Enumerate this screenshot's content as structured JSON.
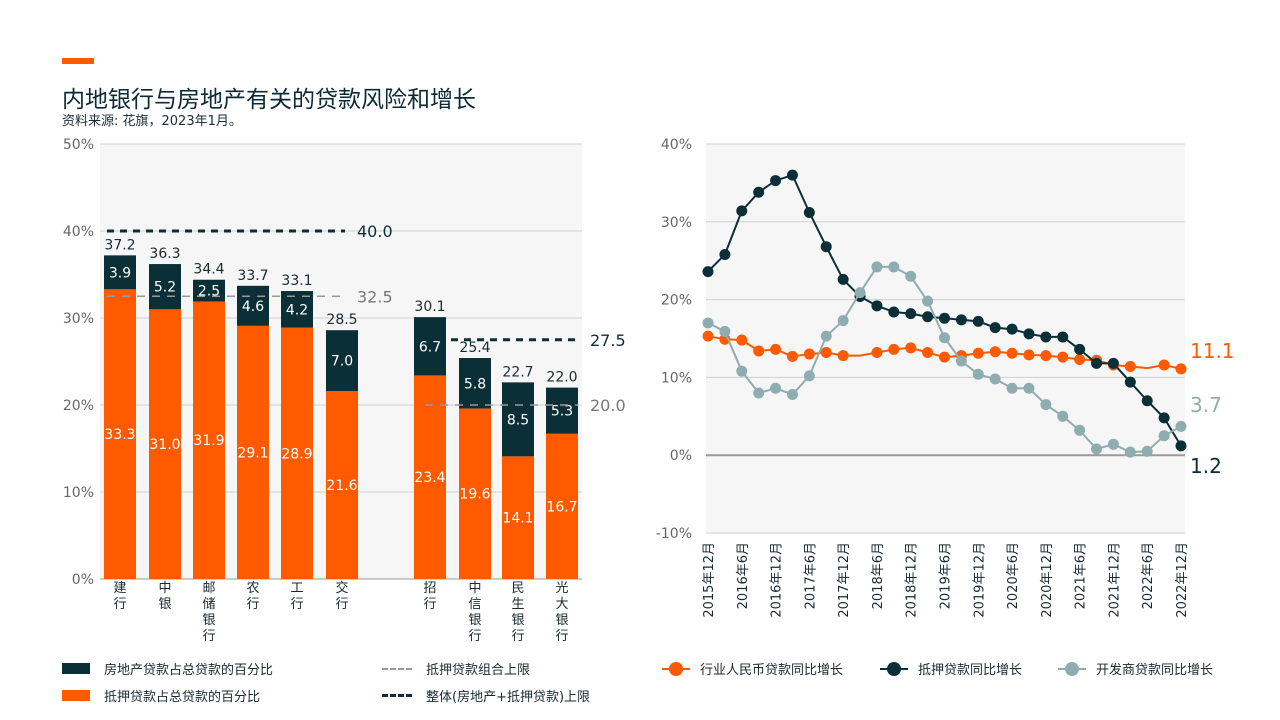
{
  "header": {
    "title": "内地银行与房地产有关的贷款风险和增长",
    "subtitle": "资料来源: 花旗，2023年1月。"
  },
  "colors": {
    "accent": "#ff5a00",
    "dark": "#0b2f36",
    "teal": "#8fadb0",
    "grid": "#d0d0d0",
    "bg": "#f6f6f6"
  },
  "legend": {
    "property_share": "房地产贷款占总贷款的百分比",
    "mortgage_share": "抵押贷款占总贷款的百分比",
    "mortgage_cap": "抵押贷款组合上限",
    "overall_cap": "整体(房地产+抵押贷款)上限",
    "industry_rmb_growth": "行业人民币贷款同比增长",
    "mortgage_growth": "抵押贷款同比增长",
    "developer_growth": "开发商贷款同比增长"
  },
  "chart_data": [
    {
      "type": "bar",
      "stacked": true,
      "categories": [
        "建行",
        "中银",
        "邮储银行",
        "农行",
        "工行",
        "交行",
        "招行",
        "中信银行",
        "民生银行",
        "光大银行"
      ],
      "series": [
        {
          "name": "抵押贷款占总贷款的百分比",
          "color": "#ff5a00",
          "values": [
            33.3,
            31.0,
            31.9,
            29.1,
            28.9,
            21.6,
            23.4,
            19.6,
            14.1,
            16.7
          ],
          "labels": [
            "33.3",
            "31.0",
            "31.9",
            "29.1",
            "28.9",
            "21.6",
            "23.4",
            "19.6",
            "14.1",
            "16.7"
          ]
        },
        {
          "name": "房地产贷款占总贷款的百分比",
          "color": "#0b2f36",
          "values": [
            3.9,
            5.2,
            2.5,
            4.6,
            4.2,
            7.0,
            6.7,
            5.8,
            8.5,
            5.3
          ],
          "labels": [
            "3.9",
            "5.2",
            "2.5",
            "4.6",
            "4.2",
            "7.0",
            "6.7",
            "5.8",
            "8.5",
            "5.3"
          ]
        }
      ],
      "totals": [
        "37.2",
        "36.3",
        "34.4",
        "33.7",
        "33.1",
        "28.5",
        "30.1",
        "25.4",
        "22.7",
        "22.0"
      ],
      "reference_lines": [
        {
          "name": "整体(房地产+抵押贷款)上限",
          "group": 1,
          "value": 40.0,
          "label": "40.0"
        },
        {
          "name": "抵押贷款组合上限",
          "group": 1,
          "value": 32.5,
          "label": "32.5"
        },
        {
          "name": "整体(房地产+抵押贷款)上限",
          "group": 2,
          "value": 27.5,
          "label": "27.5"
        },
        {
          "name": "抵押贷款组合上限",
          "group": 2,
          "value": 20.0,
          "label": "20.0"
        }
      ],
      "yticks": [
        "0%",
        "10%",
        "20%",
        "30%",
        "40%",
        "50%"
      ],
      "ylim": [
        0,
        50
      ],
      "grid": true
    },
    {
      "type": "line",
      "x": [
        "2015年12月",
        "2016年3月",
        "2016年6月",
        "2016年9月",
        "2016年12月",
        "2017年3月",
        "2017年6月",
        "2017年9月",
        "2017年12月",
        "2018年3月",
        "2018年6月",
        "2018年9月",
        "2018年12月",
        "2019年3月",
        "2019年6月",
        "2019年9月",
        "2019年12月",
        "2020年3月",
        "2020年6月",
        "2020年9月",
        "2020年12月",
        "2021年3月",
        "2021年6月",
        "2021年9月",
        "2021年12月",
        "2022年3月",
        "2022年6月",
        "2022年9月",
        "2022年12月"
      ],
      "xticks": [
        "2015年12月",
        "2016年6月",
        "2016年12月",
        "2017年6月",
        "2017年12月",
        "2018年6月",
        "2018年12月",
        "2019年6月",
        "2019年12月",
        "2020年6月",
        "2020年12月",
        "2021年6月",
        "2021年12月",
        "2022年6月",
        "2022年12月"
      ],
      "series": [
        {
          "name": "行业人民币贷款同比增长",
          "color": "#ff5a00",
          "values": [
            15.3,
            14.9,
            14.8,
            13.4,
            13.6,
            12.7,
            13.0,
            13.2,
            12.8,
            12.8,
            13.2,
            13.6,
            13.8,
            13.2,
            12.6,
            12.8,
            13.1,
            13.3,
            13.1,
            12.9,
            12.8,
            12.6,
            12.3,
            12.2,
            11.6,
            11.4,
            11.2,
            11.6,
            11.1
          ],
          "markers": [
            true,
            true,
            true,
            true,
            true,
            true,
            true,
            true,
            true,
            false,
            true,
            true,
            true,
            true,
            true,
            true,
            true,
            true,
            true,
            true,
            true,
            true,
            true,
            true,
            true,
            true,
            false,
            true,
            true
          ],
          "end_label": "11.1"
        },
        {
          "name": "抵押贷款同比增长",
          "color": "#0b2f36",
          "values": [
            23.6,
            25.8,
            31.4,
            33.8,
            35.3,
            36.0,
            31.2,
            26.8,
            22.6,
            20.4,
            19.2,
            18.4,
            18.2,
            17.8,
            17.6,
            17.4,
            17.2,
            16.4,
            16.2,
            15.6,
            15.2,
            15.2,
            13.6,
            11.8,
            11.8,
            9.4,
            7.0,
            4.8,
            1.2
          ],
          "markers": [
            true,
            true,
            true,
            true,
            true,
            true,
            true,
            true,
            true,
            true,
            true,
            true,
            true,
            true,
            true,
            true,
            true,
            true,
            true,
            true,
            true,
            true,
            true,
            true,
            true,
            true,
            true,
            true,
            true
          ],
          "end_label": "1.2"
        },
        {
          "name": "开发商贷款同比增长",
          "color": "#8fadb0",
          "values": [
            17.0,
            15.9,
            10.8,
            8.0,
            8.6,
            7.8,
            10.2,
            15.3,
            17.3,
            20.9,
            24.2,
            24.2,
            23.0,
            19.8,
            15.1,
            12.1,
            10.4,
            9.8,
            8.6,
            8.6,
            6.5,
            5.0,
            3.2,
            0.8,
            1.4,
            0.4,
            0.5,
            2.5,
            3.7
          ],
          "markers": [
            true,
            true,
            true,
            true,
            true,
            true,
            true,
            true,
            true,
            true,
            true,
            true,
            true,
            true,
            true,
            true,
            true,
            true,
            true,
            true,
            true,
            true,
            true,
            true,
            true,
            true,
            true,
            true,
            true
          ],
          "end_label": "3.7"
        }
      ],
      "yticks": [
        "-10%",
        "0%",
        "10%",
        "20%",
        "30%",
        "40%"
      ],
      "ylim": [
        -10,
        40
      ],
      "grid": true
    }
  ]
}
